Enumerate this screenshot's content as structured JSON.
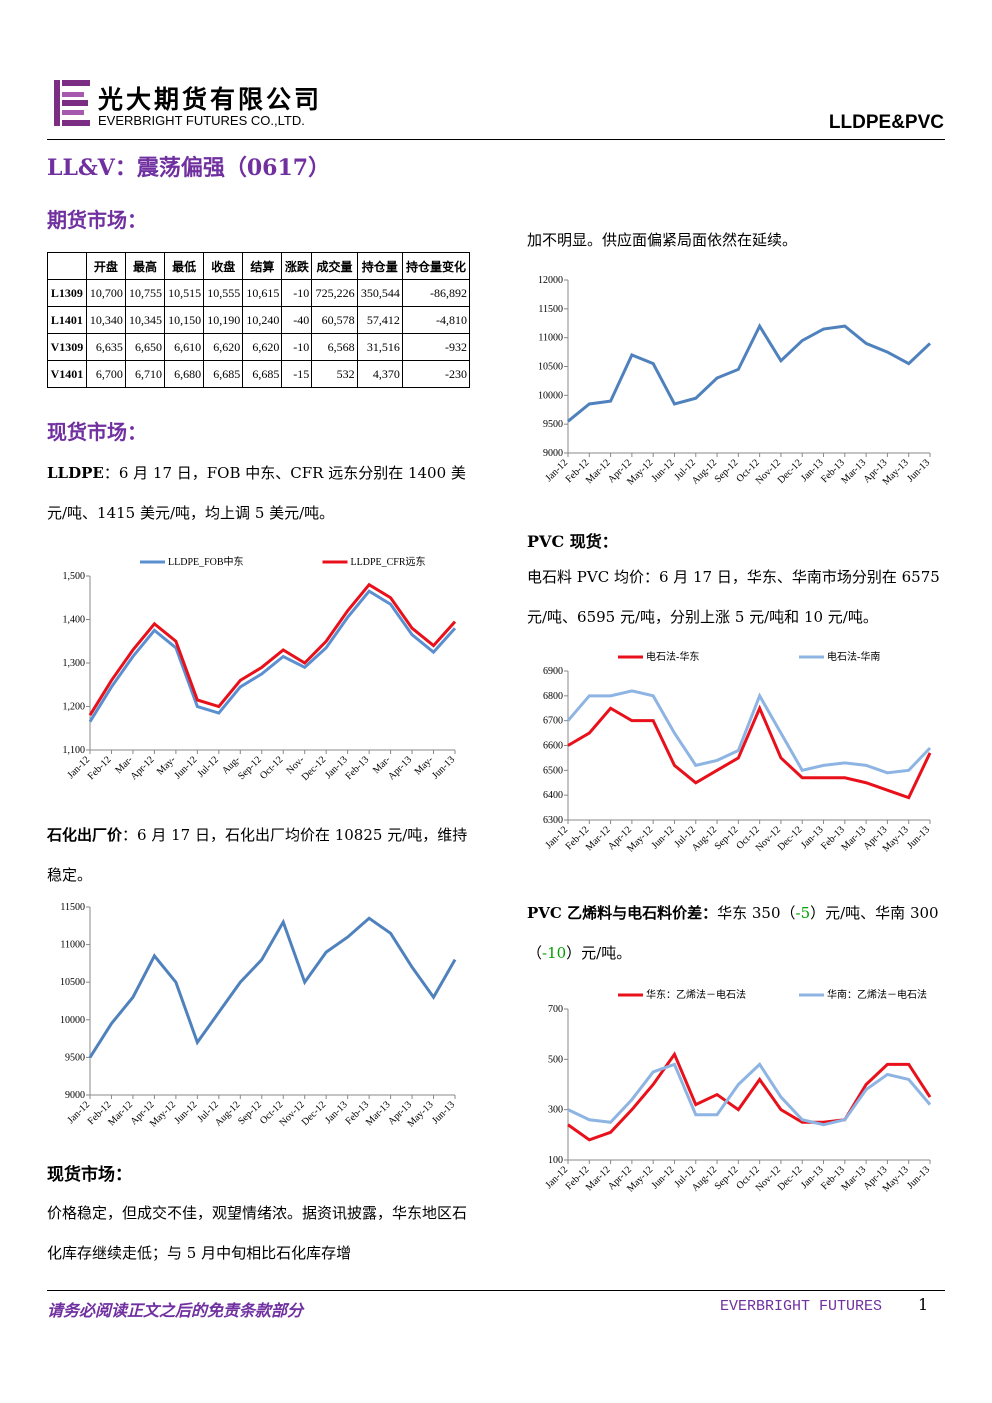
{
  "header": {
    "company": "光大期货有限公司",
    "company_en": "EVERBRIGHT FUTURES CO.,LTD.",
    "product": "LLDPE&PVC"
  },
  "title": "LL&V：震荡偏强（0617）",
  "sections": {
    "futures": "期货市场：",
    "spot": "现货市场：",
    "spot2": "现货市场："
  },
  "table": {
    "header": [
      "",
      "开盘",
      "最高",
      "最低",
      "收盘",
      "结算",
      "涨跌",
      "成交量",
      "持仓量",
      "持仓量变化"
    ],
    "rows": [
      [
        "L1309",
        "10,700",
        "10,755",
        "10,515",
        "10,555",
        "10,615",
        "-10",
        "725,226",
        "350,544",
        "-86,892"
      ],
      [
        "L1401",
        "10,340",
        "10,345",
        "10,150",
        "10,190",
        "10,240",
        "-40",
        "60,578",
        "57,412",
        "-4,810"
      ],
      [
        "V1309",
        "6,635",
        "6,650",
        "6,610",
        "6,620",
        "6,620",
        "-10",
        "6,568",
        "31,516",
        "-932"
      ],
      [
        "V1401",
        "6,700",
        "6,710",
        "6,680",
        "6,685",
        "6,685",
        "-15",
        "532",
        "4,370",
        "-230"
      ]
    ]
  },
  "paragraphs": {
    "lldpe": {
      "lead": "LLDPE",
      "text": "：6 月 17 日，FOB 中东、CFR 远东分别在 1400 美元/吨、1415 美元/吨，均上调 5 美元/吨。"
    },
    "petro": {
      "lead": "石化出厂价",
      "text": "：6 月 17 日，石化出厂均价在 10825 元/吨，维持稳定。"
    },
    "spot": "价格稳定，但成交不佳，观望情绪浓。据资讯披露，华东地区石化库存继续走低；与 5 月中旬相比石化库存增",
    "spot_cont": "加不明显。供应面偏紧局面依然在延续。",
    "pvc_head": "PVC 现货：",
    "pvc": "电石料 PVC 均价：6 月 17 日，华东、华南市场分别在 6575 元/吨、6595 元/吨，分别上涨 5 元/吨和 10 元/吨。",
    "spread": {
      "lead": "PVC 乙烯料与电石料价差：",
      "parts": [
        "华东 350（",
        "-5",
        "）元/吨、华南 300（",
        "-10",
        "）元/吨。"
      ]
    }
  },
  "chart_data": [
    {
      "type": "line",
      "categories": [
        "Jan-12",
        "Feb-12",
        "Mar-",
        "Apr-12",
        "May-",
        "Jun-12",
        "Jul-12",
        "Aug-",
        "Sep-12",
        "Oct-12",
        "Nov-",
        "Dec-12",
        "Jan-13",
        "Feb-13",
        "Mar-",
        "Apr-13",
        "May-",
        "Jun-13"
      ],
      "ylim": [
        1100,
        1500
      ],
      "yticks": [
        {
          "value": 1100,
          "label": "1,100"
        },
        {
          "value": 1200,
          "label": "1,200"
        },
        {
          "value": 1300,
          "label": "1,300"
        },
        {
          "value": 1400,
          "label": "1,400"
        },
        {
          "value": 1500,
          "label": "1,500"
        }
      ],
      "series": [
        {
          "name": "LLDPE_FOB中东",
          "color": "#5b8fd0",
          "values": [
            1165,
            1245,
            1315,
            1375,
            1335,
            1200,
            1185,
            1245,
            1275,
            1315,
            1290,
            1335,
            1405,
            1465,
            1435,
            1365,
            1325,
            1380
          ]
        },
        {
          "name": "LLDPE_CFR远东",
          "color": "#e8101a",
          "values": [
            1180,
            1260,
            1330,
            1390,
            1350,
            1215,
            1200,
            1260,
            1290,
            1330,
            1300,
            1350,
            1420,
            1480,
            1450,
            1380,
            1340,
            1395
          ]
        }
      ]
    },
    {
      "type": "line",
      "categories": [
        "Jan-12",
        "Feb-12",
        "Mar-12",
        "Apr-12",
        "May-12",
        "Jun-12",
        "Jul-12",
        "Aug-12",
        "Sep-12",
        "Oct-12",
        "Nov-12",
        "Dec-12",
        "Jan-13",
        "Feb-13",
        "Mar-13",
        "Apr-13",
        "May-13",
        "Jun-13"
      ],
      "ylim": [
        9000,
        12000
      ],
      "yticks": [
        9000,
        9500,
        10000,
        10500,
        11000,
        11500,
        12000
      ],
      "color": "#4f81bd",
      "values": [
        9550,
        9850,
        9900,
        10700,
        10550,
        9850,
        9950,
        10300,
        10450,
        11200,
        10600,
        10950,
        11150,
        11200,
        10900,
        10750,
        10550,
        10900
      ]
    },
    {
      "type": "line",
      "categories": [
        "Jan-12",
        "Feb-12",
        "Mar-12",
        "Apr-12",
        "May-12",
        "Jun-12",
        "Jul-12",
        "Aug-12",
        "Sep-12",
        "Oct-12",
        "Nov-12",
        "Dec-12",
        "Jan-13",
        "Feb-13",
        "Mar-13",
        "Apr-13",
        "May-13",
        "Jun-13"
      ],
      "ylim": [
        9000,
        11500
      ],
      "yticks": [
        9000,
        9500,
        10000,
        10500,
        11000,
        11500
      ],
      "color": "#4f81bd",
      "values": [
        9500,
        9950,
        10300,
        10850,
        10500,
        9700,
        10100,
        10500,
        10800,
        11300,
        10500,
        10900,
        11100,
        11350,
        11150,
        10700,
        10300,
        10800
      ]
    },
    {
      "type": "line",
      "categories": [
        "Jan-12",
        "Feb-12",
        "Mar-12",
        "Apr-12",
        "May-12",
        "Jun-12",
        "Jul-12",
        "Aug-12",
        "Sep-12",
        "Oct-12",
        "Nov-12",
        "Dec-12",
        "Jan-13",
        "Feb-13",
        "Mar-13",
        "Apr-13",
        "May-13",
        "Jun-13"
      ],
      "ylim": [
        6300,
        6900
      ],
      "yticks": [
        6300,
        6400,
        6500,
        6600,
        6700,
        6800,
        6900
      ],
      "series": [
        {
          "name": "电石法-华东",
          "color": "#e8101a",
          "values": [
            6600,
            6650,
            6750,
            6700,
            6700,
            6520,
            6450,
            6500,
            6550,
            6750,
            6550,
            6470,
            6470,
            6470,
            6450,
            6420,
            6390,
            6570
          ]
        },
        {
          "name": "电石法-华南",
          "color": "#8db4e2",
          "values": [
            6700,
            6800,
            6800,
            6820,
            6800,
            6650,
            6520,
            6540,
            6580,
            6800,
            6650,
            6500,
            6520,
            6530,
            6520,
            6490,
            6500,
            6590
          ]
        }
      ]
    },
    {
      "type": "line",
      "categories": [
        "Jan-12",
        "Feb-12",
        "Mar-12",
        "Apr-12",
        "May-12",
        "Jun-12",
        "Jul-12",
        "Aug-12",
        "Sep-12",
        "Oct-12",
        "Nov-12",
        "Dec-12",
        "Jan-13",
        "Feb-13",
        "Mar-13",
        "Apr-13",
        "May-13",
        "Jun-13"
      ],
      "ylim": [
        100,
        700
      ],
      "yticks": [
        100,
        300,
        500,
        700
      ],
      "series": [
        {
          "name": "华东：乙烯法－电石法",
          "color": "#e8101a",
          "values": [
            240,
            180,
            210,
            300,
            400,
            520,
            320,
            360,
            300,
            420,
            300,
            250,
            250,
            260,
            400,
            480,
            480,
            350
          ]
        },
        {
          "name": "华南：乙烯法－电石法",
          "color": "#8db4e2",
          "values": [
            300,
            260,
            250,
            340,
            450,
            480,
            280,
            280,
            400,
            480,
            350,
            260,
            240,
            260,
            380,
            440,
            420,
            320
          ]
        }
      ]
    }
  ],
  "footer": {
    "disclaimer": "请务必阅读正文之后的免责条款部分",
    "brand": "EVERBRIGHT FUTURES",
    "page": "1"
  }
}
